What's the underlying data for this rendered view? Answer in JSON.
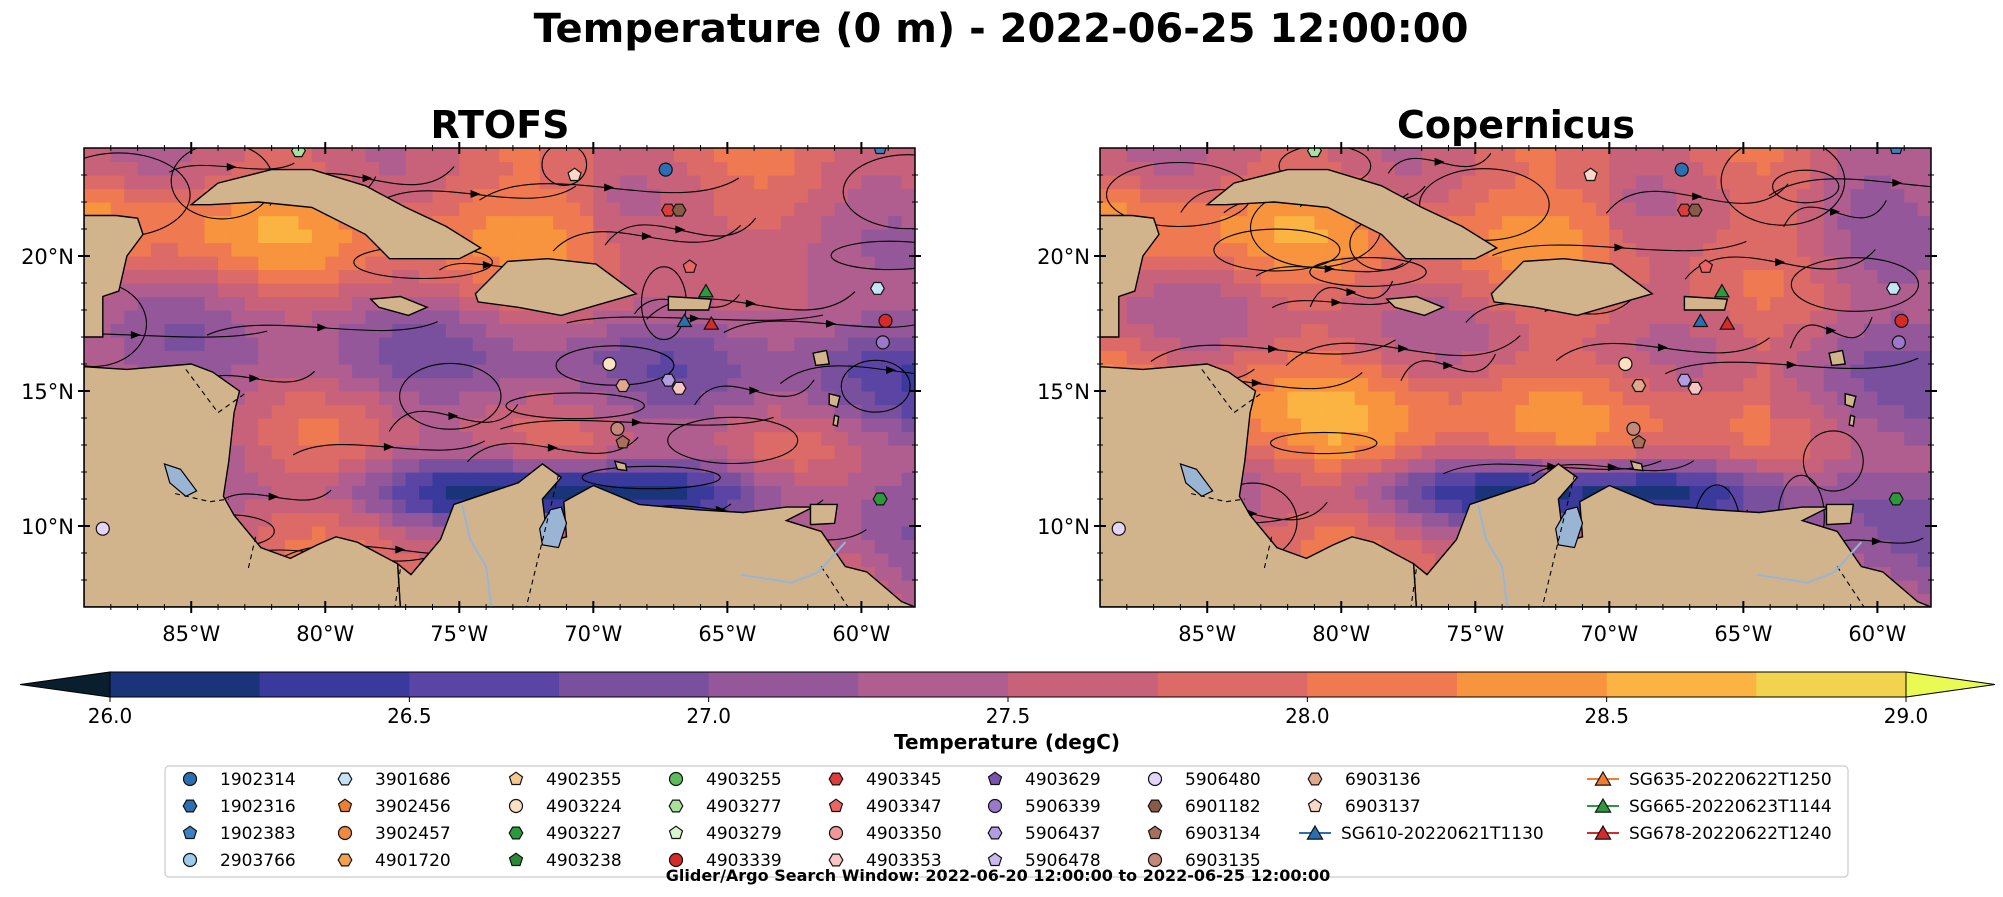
{
  "figure": {
    "title": "Temperature (0 m) - 2022-06-25 12:00:00",
    "footnote": "Glider/Argo Search Window: 2022-06-20 12:00:00 to 2022-06-25 12:00:00"
  },
  "chart_data": [
    {
      "type": "heatmap",
      "title": "RTOFS",
      "xlim": [
        -89,
        -58
      ],
      "ylim": [
        7,
        24
      ],
      "x_ticks": [
        -85,
        -80,
        -75,
        -70,
        -65,
        -60
      ],
      "x_tick_labels": [
        "85°W",
        "80°W",
        "75°W",
        "70°W",
        "65°W",
        "60°W"
      ],
      "y_ticks": [
        10,
        15,
        20
      ],
      "y_tick_labels": [
        "10°N",
        "15°N",
        "20°N"
      ]
    },
    {
      "type": "heatmap",
      "title": "Copernicus",
      "xlim": [
        -89,
        -58
      ],
      "ylim": [
        7,
        24
      ],
      "x_ticks": [
        -85,
        -80,
        -75,
        -70,
        -65,
        -60
      ],
      "x_tick_labels": [
        "85°W",
        "80°W",
        "75°W",
        "70°W",
        "65°W",
        "60°W"
      ],
      "y_ticks": [
        10,
        15,
        20
      ],
      "y_tick_labels": [
        "10°N",
        "15°N",
        "20°N"
      ]
    }
  ],
  "colorbar": {
    "label": "Temperature (degC)",
    "min": 26.0,
    "max": 29.0,
    "step": 0.25,
    "ticks": [
      26.0,
      26.5,
      27.0,
      27.5,
      28.0,
      28.5,
      29.0
    ],
    "tick_labels": [
      "26.0",
      "26.5",
      "27.0",
      "27.5",
      "28.0",
      "28.5",
      "29.0"
    ],
    "colors": [
      "#0c2a44",
      "#1a347a",
      "#3a3a9c",
      "#5a45a4",
      "#78509e",
      "#94589a",
      "#b05e90",
      "#c8627a",
      "#dc6a66",
      "#ef7a52",
      "#f8933e",
      "#fbb342",
      "#f2d34e"
    ],
    "under_color": "#0a1f2e",
    "over_color": "#e9fb52"
  },
  "land_color": "#d2b48c",
  "lake_color": "#9ab4d4",
  "legend": {
    "columns": [
      [
        {
          "label": "1902314",
          "shape": "circle",
          "color": "#2a6fb0"
        },
        {
          "label": "1902316",
          "shape": "hexagon",
          "color": "#2a6fb0"
        },
        {
          "label": "1902383",
          "shape": "pentagon",
          "color": "#3a82c4"
        },
        {
          "label": "2903766",
          "shape": "circle",
          "color": "#9ccbec"
        }
      ],
      [
        {
          "label": "3901686",
          "shape": "hexagon",
          "color": "#c4e4f6"
        },
        {
          "label": "3902456",
          "shape": "pentagon",
          "color": "#f07e2e"
        },
        {
          "label": "3902457",
          "shape": "circle",
          "color": "#f08a3c"
        },
        {
          "label": "4901720",
          "shape": "hexagon",
          "color": "#f4a04c"
        }
      ],
      [
        {
          "label": "4902355",
          "shape": "pentagon",
          "color": "#f8c890"
        },
        {
          "label": "4903224",
          "shape": "circle",
          "color": "#fce0c4"
        },
        {
          "label": "4903227",
          "shape": "hexagon",
          "color": "#2c9a3c"
        },
        {
          "label": "4903238",
          "shape": "pentagon",
          "color": "#2c8a34"
        }
      ],
      [
        {
          "label": "4903255",
          "shape": "circle",
          "color": "#5cbc5c"
        },
        {
          "label": "4903277",
          "shape": "hexagon",
          "color": "#a8e09c"
        },
        {
          "label": "4903279",
          "shape": "pentagon",
          "color": "#d8f4cc"
        },
        {
          "label": "4903339",
          "shape": "circle",
          "color": "#d42a2a"
        }
      ],
      [
        {
          "label": "4903345",
          "shape": "hexagon",
          "color": "#dc3c3c"
        },
        {
          "label": "4903347",
          "shape": "pentagon",
          "color": "#ec6464"
        },
        {
          "label": "4903350",
          "shape": "circle",
          "color": "#f09898"
        },
        {
          "label": "4903353",
          "shape": "hexagon",
          "color": "#f8c4c4"
        }
      ],
      [
        {
          "label": "4903629",
          "shape": "pentagon",
          "color": "#7a52b0"
        },
        {
          "label": "5906339",
          "shape": "circle",
          "color": "#9c78cc"
        },
        {
          "label": "5906437",
          "shape": "hexagon",
          "color": "#b49ce0"
        },
        {
          "label": "5906478",
          "shape": "pentagon",
          "color": "#ccb8ec"
        }
      ],
      [
        {
          "label": "5906480",
          "shape": "circle",
          "color": "#e4d4f8"
        },
        {
          "label": "6901182",
          "shape": "hexagon",
          "color": "#8a5a48"
        },
        {
          "label": "6903134",
          "shape": "pentagon",
          "color": "#a8705c"
        },
        {
          "label": "6903135",
          "shape": "circle",
          "color": "#c48878"
        }
      ],
      [
        {
          "label": "6903136",
          "shape": "hexagon",
          "color": "#e0a88c"
        },
        {
          "label": "6903137",
          "shape": "pentagon",
          "color": "#fcd8c8"
        },
        {
          "label": "SG610-20220621T1130",
          "shape": "triangle-line",
          "color": "#2a6fb0"
        }
      ],
      [
        {
          "label": "SG635-20220622T1250",
          "shape": "triangle-line",
          "color": "#f07e2e"
        },
        {
          "label": "SG665-20220623T1144",
          "shape": "triangle-line",
          "color": "#2c9a3c"
        },
        {
          "label": "SG678-20220622T1240",
          "shape": "triangle-line",
          "color": "#d42a2a"
        }
      ]
    ]
  }
}
